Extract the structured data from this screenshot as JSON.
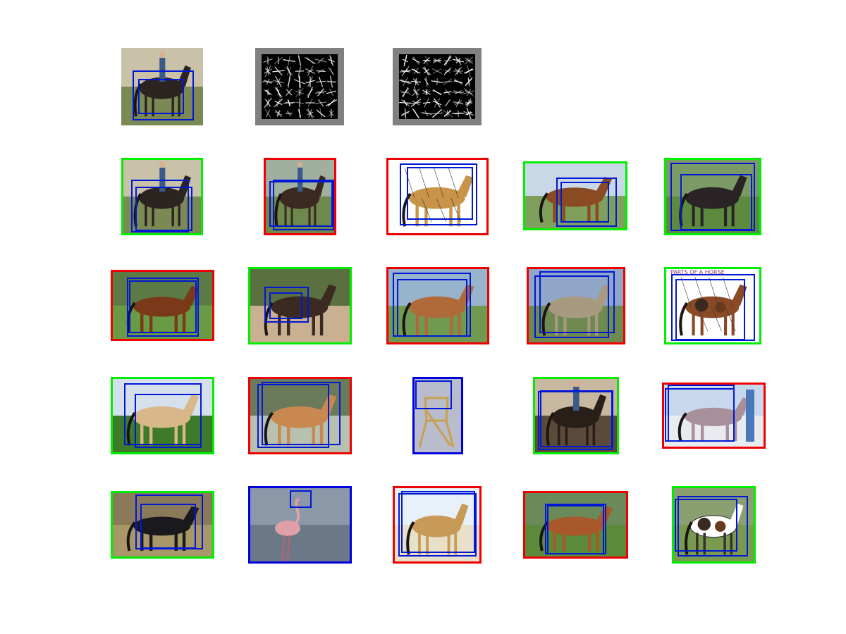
{
  "figure": {
    "row1": [
      "query-image",
      "hog-template-a",
      "hog-template-b"
    ],
    "grid_rows": 4,
    "grid_cols": 5
  },
  "colors": {
    "correct": "#00ee00",
    "incorrect": "#ee0000",
    "other": "#0000dd",
    "box": "#0018d6",
    "hog_frame": "#808080"
  },
  "thumbnails": [
    {
      "subject": "dark horse with rider",
      "outline": "none"
    },
    {
      "subject": "dark horse with rider",
      "outline": "correct"
    },
    {
      "subject": "cowboy on dark horse",
      "outline": "incorrect"
    },
    {
      "subject": "palomino horse anatomy diagram",
      "outline": "incorrect"
    },
    {
      "subject": "two chestnut horses",
      "outline": "correct"
    },
    {
      "subject": "black horse",
      "outline": "correct"
    },
    {
      "subject": "bay horse",
      "outline": "incorrect"
    },
    {
      "subject": "small horse with people",
      "outline": "correct"
    },
    {
      "subject": "chestnut horse",
      "outline": "incorrect"
    },
    {
      "subject": "grey horse",
      "outline": "incorrect"
    },
    {
      "subject": "appaloosa horse diagram",
      "outline": "correct"
    },
    {
      "subject": "palomino horse",
      "outline": "correct"
    },
    {
      "subject": "palomino horse",
      "outline": "incorrect"
    },
    {
      "subject": "folding chair",
      "outline": "other"
    },
    {
      "subject": "cowboy on horse",
      "outline": "correct"
    },
    {
      "subject": "grey horse with man",
      "outline": "incorrect"
    },
    {
      "subject": "black horse",
      "outline": "correct"
    },
    {
      "subject": "flamingo",
      "outline": "other"
    },
    {
      "subject": "buckskin horse",
      "outline": "incorrect"
    },
    {
      "subject": "chestnut horse",
      "outline": "incorrect"
    },
    {
      "subject": "paint horse",
      "outline": "correct"
    }
  ],
  "diagram_text": {
    "parts_title": "PARTS OF A HORSE"
  }
}
